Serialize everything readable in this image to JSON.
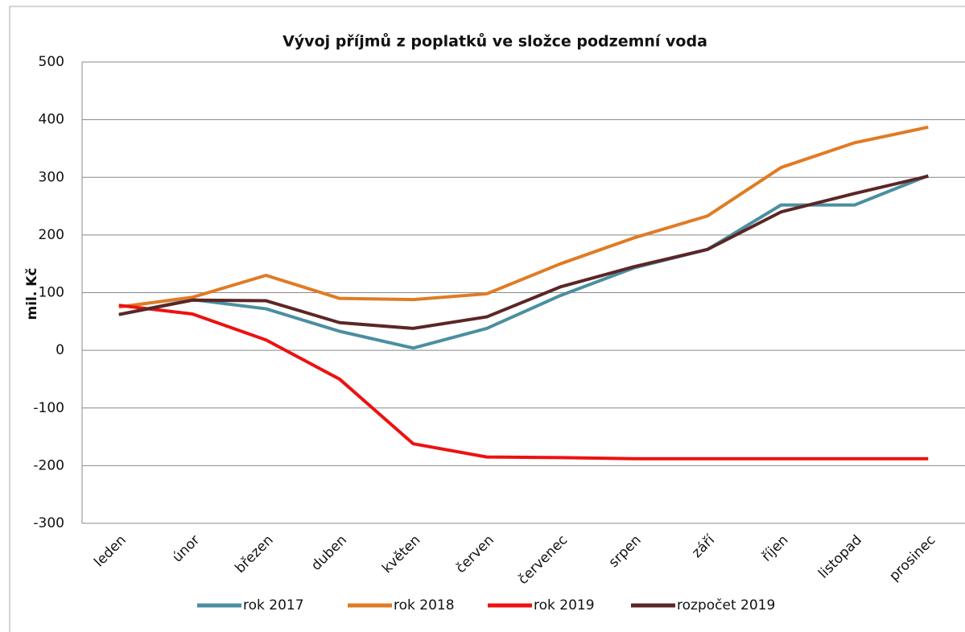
{
  "chart_data": {
    "type": "line",
    "title": "Vývoj příjmů z poplatků ve složce podzemní voda",
    "y_label": "mil. Kč",
    "categories": [
      "leden",
      "únor",
      "březen",
      "duben",
      "květen",
      "červen",
      "červenec",
      "srpen",
      "září",
      "říjen",
      "listopad",
      "prosinec"
    ],
    "series": [
      {
        "name": "rok 2017",
        "color": "#4a8fa1",
        "values": [
          62,
          88,
          72,
          33,
          4,
          38,
          95,
          143,
          175,
          252,
          252,
          303
        ]
      },
      {
        "name": "rok 2018",
        "color": "#e07b24",
        "values": [
          75,
          92,
          130,
          90,
          88,
          98,
          150,
          195,
          233,
          317,
          360,
          387
        ]
      },
      {
        "name": "rok 2019",
        "color": "#ee1111",
        "values": [
          78,
          63,
          18,
          -50,
          -162,
          -185,
          -186,
          -188,
          -188,
          -188,
          -188,
          -188
        ]
      },
      {
        "name": "rozpočet 2019",
        "color": "#5c2626",
        "values": [
          62,
          87,
          86,
          48,
          38,
          58,
          110,
          145,
          175,
          240,
          272,
          302
        ]
      }
    ],
    "ylim": [
      -300,
      500
    ],
    "yticks": [
      -300,
      -200,
      -100,
      0,
      100,
      200,
      300,
      400,
      500
    ],
    "grid": true
  }
}
